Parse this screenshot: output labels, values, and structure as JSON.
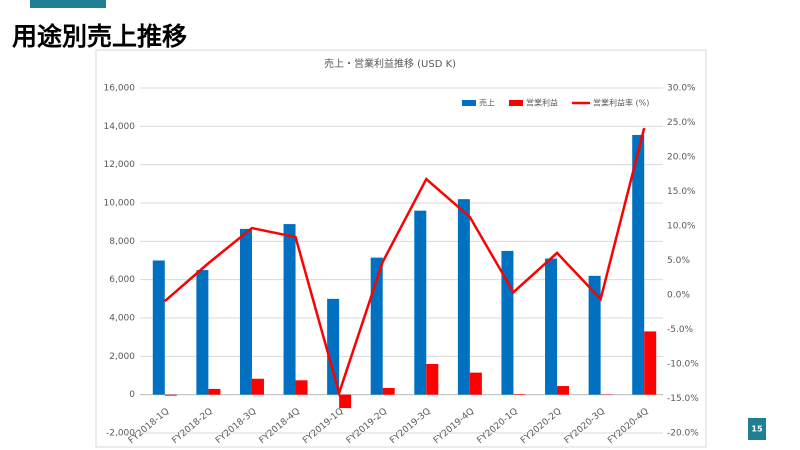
{
  "header": {
    "title": "用途別売上推移"
  },
  "page_number": "15",
  "chart_data": {
    "type": "bar",
    "title": "売上・営業利益推移 (USD K)",
    "categories": [
      "FY2018-1Q",
      "FY2018-2Q",
      "FY2018-3Q",
      "FY2018-4Q",
      "FY2019-1Q",
      "FY2019-2Q",
      "FY2019-3Q",
      "FY2019-4Q",
      "FY2020-1Q",
      "FY2020-2Q",
      "FY2020-3Q",
      "FY2020-4Q"
    ],
    "series": [
      {
        "name": "売上",
        "color": "#0070c0",
        "values": [
          7000,
          6500,
          8650,
          8900,
          5000,
          7150,
          9600,
          10200,
          7500,
          7100,
          6200,
          13550
        ]
      },
      {
        "name": "営業利益",
        "color": "#ff0000",
        "values": [
          -50,
          300,
          830,
          750,
          -700,
          350,
          1600,
          1150,
          30,
          450,
          -20,
          3300
        ]
      },
      {
        "name": "営業利益率 (%)",
        "color": "#ff0000",
        "type": "line",
        "axis": "y2",
        "values": [
          -0.9,
          4.6,
          9.7,
          8.4,
          -14.2,
          4.8,
          16.8,
          11.3,
          0.4,
          6.1,
          -0.6,
          24.2
        ]
      }
    ],
    "ylim": [
      -2000,
      16000
    ],
    "yticks": [
      {
        "value": -2000,
        "label": "-2,000"
      },
      0,
      {
        "value": 2000,
        "label": "2,000"
      },
      {
        "value": 4000,
        "label": "4,000"
      },
      {
        "value": 6000,
        "label": "6,000"
      },
      {
        "value": 8000,
        "label": "8,000"
      },
      {
        "value": 10000,
        "label": "10,000"
      },
      {
        "value": 12000,
        "label": "12,000"
      },
      {
        "value": 14000,
        "label": "14,000"
      },
      {
        "value": 16000,
        "label": "16,000"
      }
    ],
    "y2lim": [
      -20,
      30
    ],
    "y2ticks": [
      {
        "value": -20,
        "label": "-20.0%"
      },
      {
        "value": -15,
        "label": "-15.0%"
      },
      {
        "value": -10,
        "label": "-10.0%"
      },
      {
        "value": -5,
        "label": "-5.0%"
      },
      {
        "value": 0,
        "label": "0.0%"
      },
      {
        "value": 5,
        "label": "5.0%"
      },
      {
        "value": 10,
        "label": "10.0%"
      },
      {
        "value": 15,
        "label": "15.0%"
      },
      {
        "value": 20,
        "label": "20.0%"
      },
      {
        "value": 25,
        "label": "25.0%"
      },
      {
        "value": 30,
        "label": "30.0%"
      }
    ],
    "grid": true,
    "legend": "top-right"
  }
}
